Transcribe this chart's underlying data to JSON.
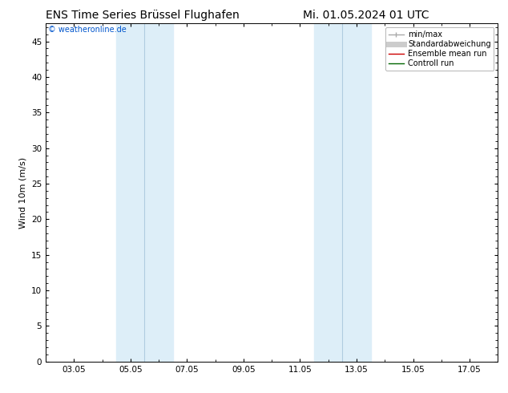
{
  "title_left": "ENS Time Series Brüssel Flughafen",
  "title_right": "Mi. 01.05.2024 01 UTC",
  "ylabel": "Wind 10m (m/s)",
  "ylim": [
    0,
    47.5
  ],
  "yticks": [
    0,
    5,
    10,
    15,
    20,
    25,
    30,
    35,
    40,
    45
  ],
  "xtick_labels": [
    "03.05",
    "05.05",
    "07.05",
    "09.05",
    "11.05",
    "13.05",
    "15.05",
    "17.05"
  ],
  "xtick_positions": [
    2,
    4,
    6,
    8,
    10,
    12,
    14,
    16
  ],
  "xlim": [
    1,
    17
  ],
  "shaded_bands": [
    {
      "xmin": 3.5,
      "xmax": 4.5,
      "color": "#ddeef8"
    },
    {
      "xmin": 4.5,
      "xmax": 5.5,
      "color": "#ddeef8"
    },
    {
      "xmin": 10.5,
      "xmax": 11.5,
      "color": "#ddeef8"
    },
    {
      "xmin": 11.5,
      "xmax": 12.5,
      "color": "#ddeef8"
    }
  ],
  "band_dividers": [
    4.5,
    11.5
  ],
  "legend_items": [
    {
      "label": "min/max",
      "color": "#aaaaaa",
      "lw": 1.0
    },
    {
      "label": "Standardabweichung",
      "color": "#cccccc",
      "lw": 5
    },
    {
      "label": "Ensemble mean run",
      "color": "#cc0000",
      "lw": 1.0
    },
    {
      "label": "Controll run",
      "color": "#006600",
      "lw": 1.0
    }
  ],
  "copyright_text": "© weatheronline.de",
  "copyright_color": "#0055cc",
  "background_color": "#ffffff",
  "title_fontsize": 10,
  "label_fontsize": 8,
  "tick_fontsize": 7.5,
  "legend_fontsize": 7
}
